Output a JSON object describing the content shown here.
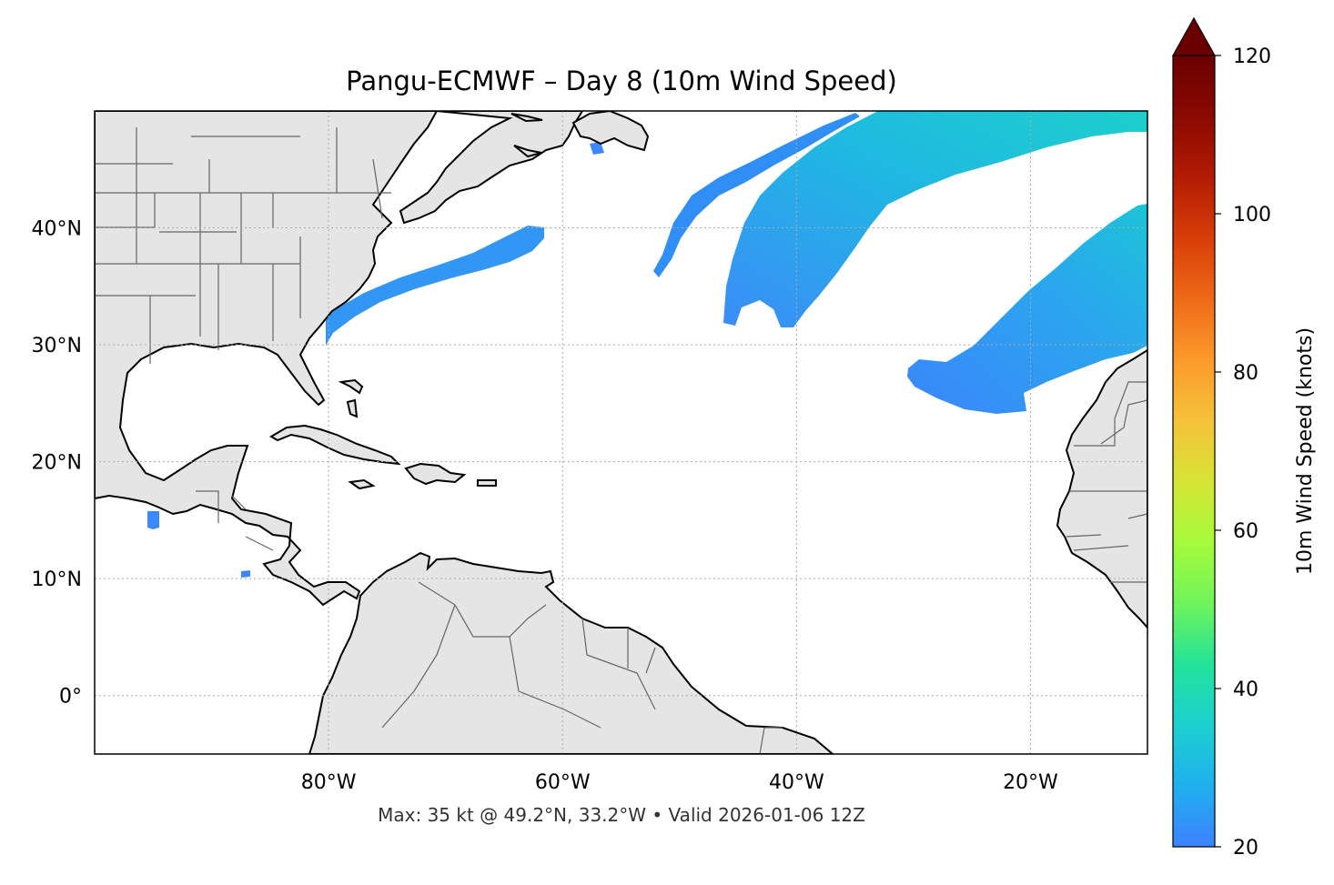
{
  "title": "Pangu-ECMWF – Day 8 (10m Wind Speed)",
  "footer": "Max: 35 kt @ 49.2°N, 33.2°W • Valid 2026-01-06 12Z",
  "map": {
    "lon_range": [
      -100,
      -10
    ],
    "lat_range": [
      -5,
      50
    ],
    "lat_ticks": [
      {
        "value": 40,
        "label": "40°N"
      },
      {
        "value": 30,
        "label": "30°N"
      },
      {
        "value": 20,
        "label": "20°N"
      },
      {
        "value": 10,
        "label": "10°N"
      },
      {
        "value": 0,
        "label": "0°"
      }
    ],
    "lon_ticks": [
      {
        "value": -80,
        "label": "80°W"
      },
      {
        "value": -60,
        "label": "60°W"
      },
      {
        "value": -40,
        "label": "40°W"
      },
      {
        "value": -20,
        "label": "20°W"
      }
    ],
    "gridlines": true,
    "land_color": "#e5e5e5",
    "coast_color": "#000000",
    "border_color": "#666666"
  },
  "colorbar": {
    "label": "10m Wind Speed (knots)",
    "min": 20,
    "max": 120,
    "extend": "max",
    "ticks": [
      "20",
      "40",
      "60",
      "80",
      "100",
      "120"
    ],
    "colormap": [
      "#3d82ff",
      "#1fb0ed",
      "#1cd0d0",
      "#22e39a",
      "#6ff45a",
      "#a6fb3a",
      "#d6e434",
      "#f6c23a",
      "#fb9a2a",
      "#ef6a18",
      "#d83e08",
      "#b31c03",
      "#8a0a02",
      "#6a0000"
    ]
  },
  "wind_regions": [
    {
      "name": "wind-band-gulf-stream",
      "color": "#3296f5"
    },
    {
      "name": "wind-band-north-1",
      "color": "#2f8ff6"
    },
    {
      "name": "wind-band-north-2",
      "color": "#1fc9d6"
    },
    {
      "name": "wind-band-east",
      "color": "#24b4e6"
    },
    {
      "name": "wind-patch-small",
      "color": "#3b88ff"
    }
  ]
}
